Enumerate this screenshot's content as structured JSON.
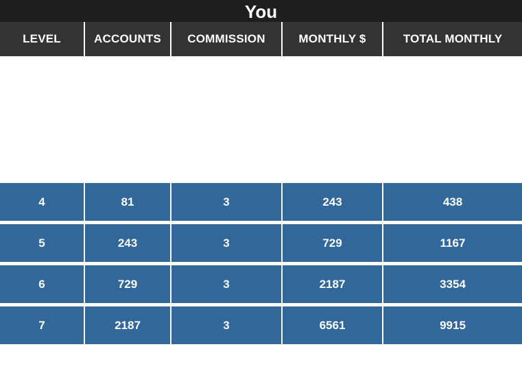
{
  "title": "You",
  "columns": [
    "LEVEL",
    "ACCOUNTS",
    "COMMISSION",
    "MONTHLY $",
    "TOTAL MONTHLY"
  ],
  "rows": [
    [
      "4",
      "81",
      "3",
      "243",
      "438"
    ],
    [
      "5",
      "243",
      "3",
      "729",
      "1167"
    ],
    [
      "6",
      "729",
      "3",
      "2187",
      "3354"
    ],
    [
      "7",
      "2187",
      "3",
      "6561",
      "9915"
    ]
  ],
  "colors": {
    "title_bar": "#1e1e1e",
    "header_row": "#333333",
    "data_row": "#32679a",
    "text": "#ffffff",
    "background": "#ffffff"
  }
}
